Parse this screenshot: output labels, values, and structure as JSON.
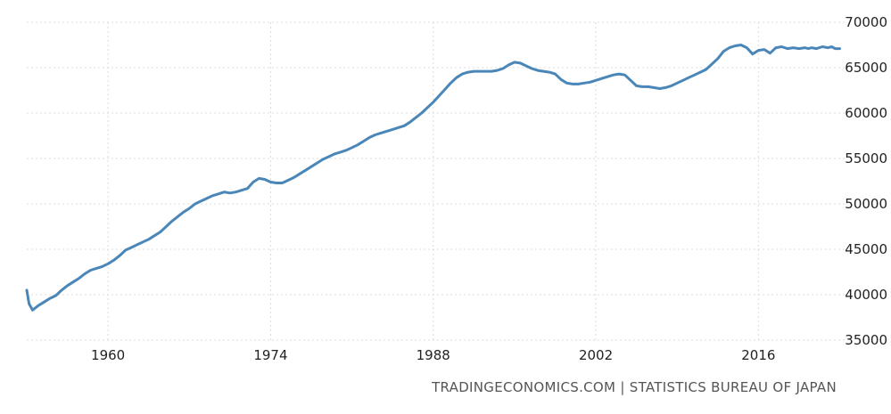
{
  "chart_data": {
    "type": "line",
    "title": "",
    "xlabel": "",
    "ylabel": "",
    "x_tick_labels": [
      "1960",
      "1974",
      "1988",
      "2002",
      "2016"
    ],
    "x_ticks": [
      1960,
      1974,
      1988,
      2002,
      2016
    ],
    "y_tick_labels": [
      "70000",
      "65000",
      "60000",
      "55000",
      "50000",
      "45000",
      "40000",
      "35000"
    ],
    "y_ticks": [
      70000,
      65000,
      60000,
      55000,
      50000,
      45000,
      40000,
      35000
    ],
    "xlim": [
      1953,
      2023.5
    ],
    "ylim": [
      35000,
      70000
    ],
    "y_axis_side": "right",
    "grid": true,
    "line_color": "#4a86b8",
    "grid_color": "#dcdcdc",
    "series": [
      {
        "x": [
          1953.0,
          1953.2,
          1953.5,
          1954.0,
          1954.5,
          1955.0,
          1955.5,
          1956.0,
          1956.5,
          1957.0,
          1957.5,
          1958.0,
          1958.5,
          1959.0,
          1959.5,
          1960.0,
          1960.5,
          1961.0,
          1961.5,
          1962.0,
          1962.5,
          1963.0,
          1963.5,
          1964.0,
          1964.5,
          1965.0,
          1965.5,
          1966.0,
          1966.5,
          1967.0,
          1967.5,
          1968.0,
          1968.5,
          1969.0,
          1969.5,
          1970.0,
          1970.5,
          1971.0,
          1971.5,
          1972.0,
          1972.5,
          1973.0,
          1973.5,
          1974.0,
          1974.5,
          1975.0,
          1975.5,
          1976.0,
          1976.5,
          1977.0,
          1977.5,
          1978.0,
          1978.5,
          1979.0,
          1979.5,
          1980.0,
          1980.5,
          1981.0,
          1981.5,
          1982.0,
          1982.5,
          1983.0,
          1983.5,
          1984.0,
          1984.5,
          1985.0,
          1985.5,
          1986.0,
          1986.5,
          1987.0,
          1987.5,
          1988.0,
          1988.5,
          1989.0,
          1989.5,
          1990.0,
          1990.5,
          1991.0,
          1991.5,
          1992.0,
          1992.5,
          1993.0,
          1993.5,
          1994.0,
          1994.5,
          1995.0,
          1995.5,
          1996.0,
          1996.5,
          1997.0,
          1997.5,
          1998.0,
          1998.5,
          1999.0,
          1999.5,
          2000.0,
          2000.5,
          2001.0,
          2001.5,
          2002.0,
          2002.5,
          2003.0,
          2003.5,
          2004.0,
          2004.5,
          2005.0,
          2005.5,
          2006.0,
          2006.5,
          2007.0,
          2007.5,
          2008.0,
          2008.5,
          2009.0,
          2009.5,
          2010.0,
          2010.5,
          2011.0,
          2011.5,
          2012.0,
          2012.5,
          2013.0,
          2013.5,
          2014.0,
          2014.5,
          2015.0,
          2015.5,
          2016.0,
          2016.5,
          2017.0,
          2017.5,
          2018.0,
          2018.5,
          2019.0,
          2019.5,
          2020.0,
          2020.3,
          2020.6,
          2021.0,
          2021.5,
          2022.0,
          2022.3,
          2022.6,
          2023.0
        ],
        "values": [
          40500,
          39000,
          38300,
          38800,
          39200,
          39600,
          39900,
          40500,
          41000,
          41400,
          41800,
          42300,
          42700,
          42900,
          43100,
          43400,
          43800,
          44300,
          44900,
          45200,
          45500,
          45800,
          46100,
          46500,
          46900,
          47500,
          48100,
          48600,
          49100,
          49500,
          50000,
          50300,
          50600,
          50900,
          51100,
          51300,
          51200,
          51300,
          51500,
          51700,
          52400,
          52800,
          52700,
          52400,
          52300,
          52300,
          52600,
          52900,
          53300,
          53700,
          54100,
          54500,
          54900,
          55200,
          55500,
          55700,
          55900,
          56200,
          56500,
          56900,
          57300,
          57600,
          57800,
          58000,
          58200,
          58400,
          58600,
          59000,
          59500,
          60000,
          60600,
          61200,
          61900,
          62600,
          63300,
          63900,
          64300,
          64500,
          64600,
          64600,
          64600,
          64600,
          64700,
          64900,
          65300,
          65600,
          65500,
          65200,
          64900,
          64700,
          64600,
          64500,
          64300,
          63700,
          63300,
          63200,
          63200,
          63300,
          63400,
          63600,
          63800,
          64000,
          64200,
          64300,
          64200,
          63600,
          63000,
          62900,
          62900,
          62800,
          62700,
          62800,
          63000,
          63300,
          63600,
          63900,
          64200,
          64500,
          64800,
          65400,
          66000,
          66800,
          67200,
          67400,
          67500,
          67200,
          66500,
          66900,
          67000,
          66600,
          67200,
          67300,
          67100,
          67200,
          67100,
          67200,
          67100,
          67200,
          67100,
          67300,
          67200,
          67300,
          67100,
          67100
        ]
      }
    ]
  },
  "source_text": "TRADINGECONOMICS.COM | STATISTICS BUREAU OF JAPAN"
}
